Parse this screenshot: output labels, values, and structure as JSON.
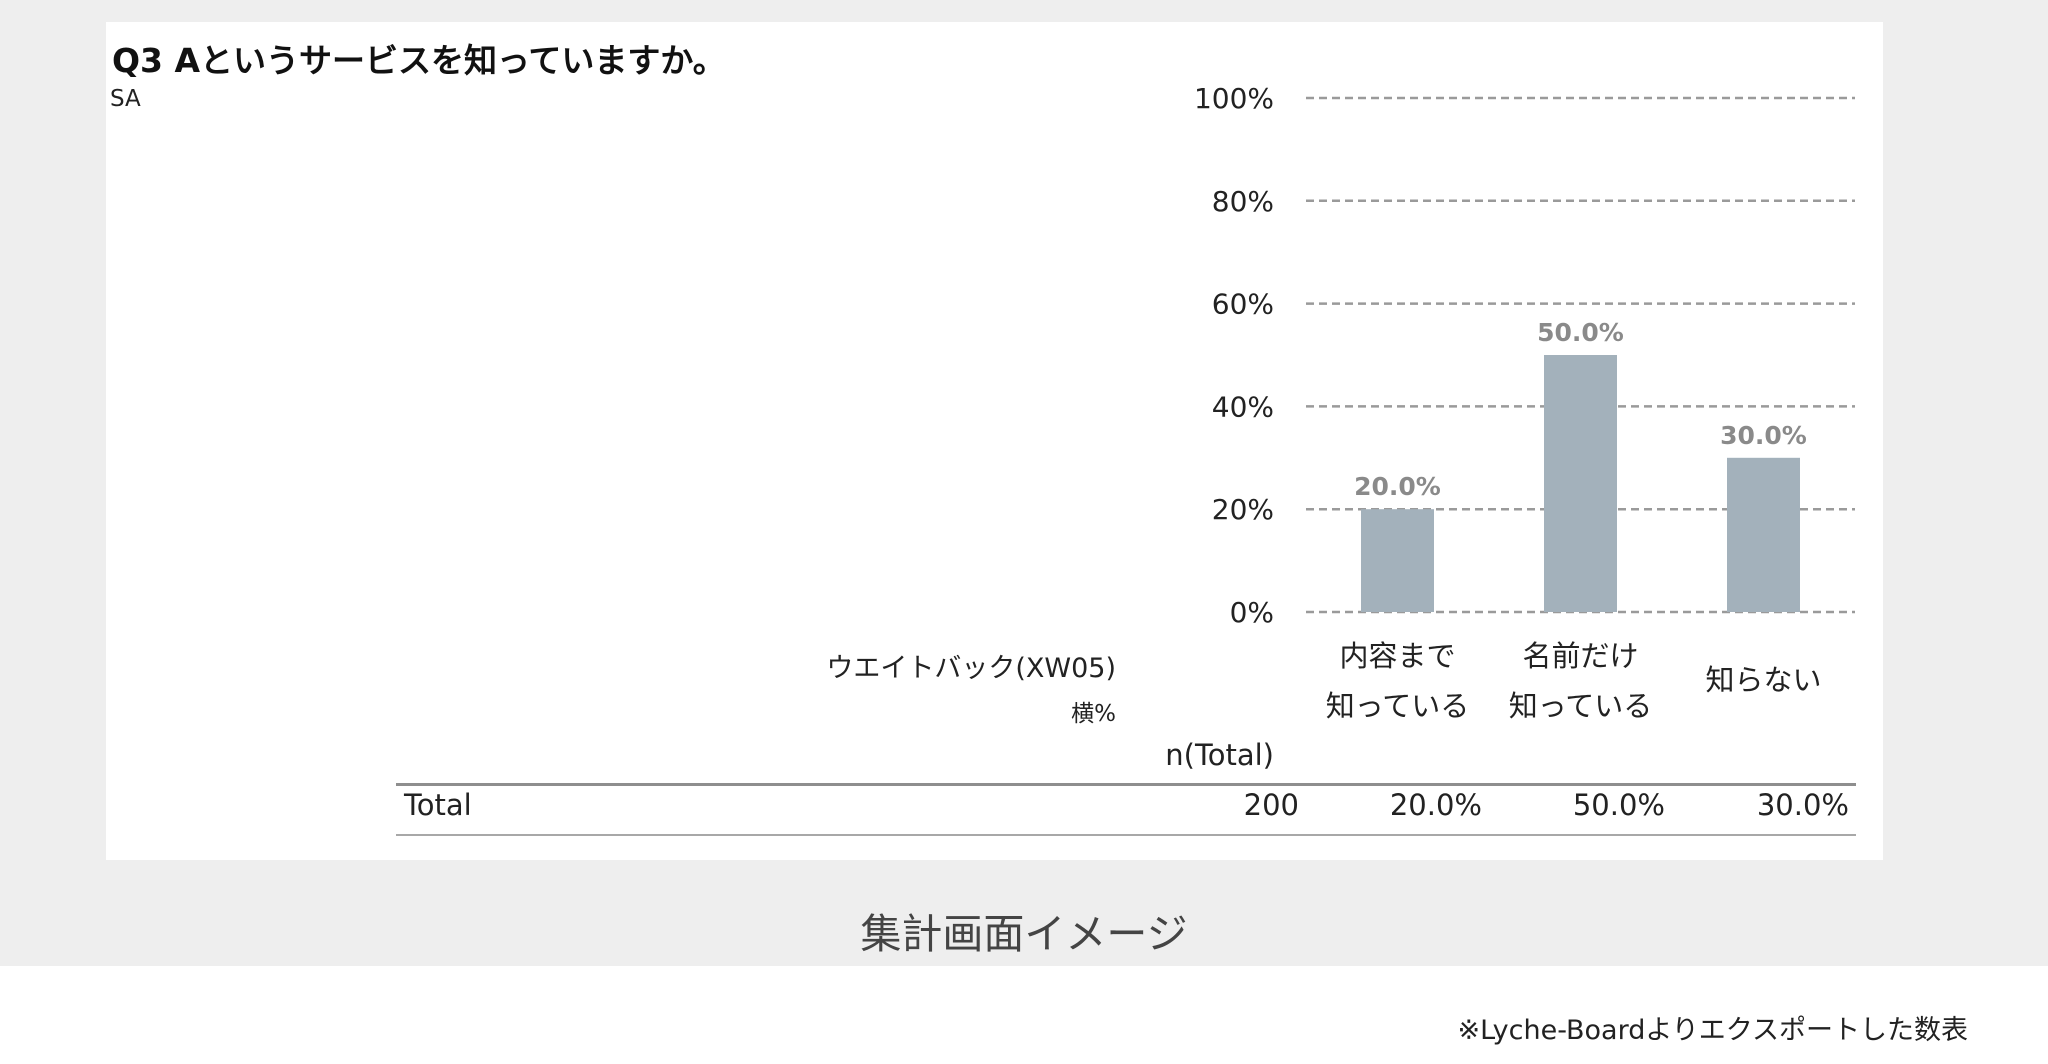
{
  "question": {
    "title": "Q3 Aというサービスを知っていますか。",
    "type": "SA"
  },
  "weight_label": "ウエイトバック(XW05)",
  "pct_label": "横%",
  "table": {
    "n_header": "n(Total)",
    "rows": [
      {
        "label": "Total",
        "n": "200",
        "values": [
          "20.0%",
          "50.0%",
          "30.0%"
        ]
      }
    ]
  },
  "caption": "集計画面イメージ",
  "footnote": "※Lyche-Boardよりエクスポートした数表",
  "chart_data": {
    "type": "bar",
    "categories": [
      [
        "内容まで",
        "知っている"
      ],
      [
        "名前だけ",
        "知っている"
      ],
      [
        "知らない"
      ]
    ],
    "values": [
      20.0,
      50.0,
      30.0
    ],
    "data_labels": [
      "20.0%",
      "50.0%",
      "30.0%"
    ],
    "ylim": [
      0,
      100
    ],
    "yticks": [
      0,
      20,
      40,
      60,
      80,
      100
    ],
    "ytick_labels": [
      "0%",
      "20%",
      "40%",
      "60%",
      "80%",
      "100%"
    ],
    "grid": "dashed horizontal",
    "bar_color": "#a3b1bb",
    "label_color": "#8a8a8a"
  }
}
